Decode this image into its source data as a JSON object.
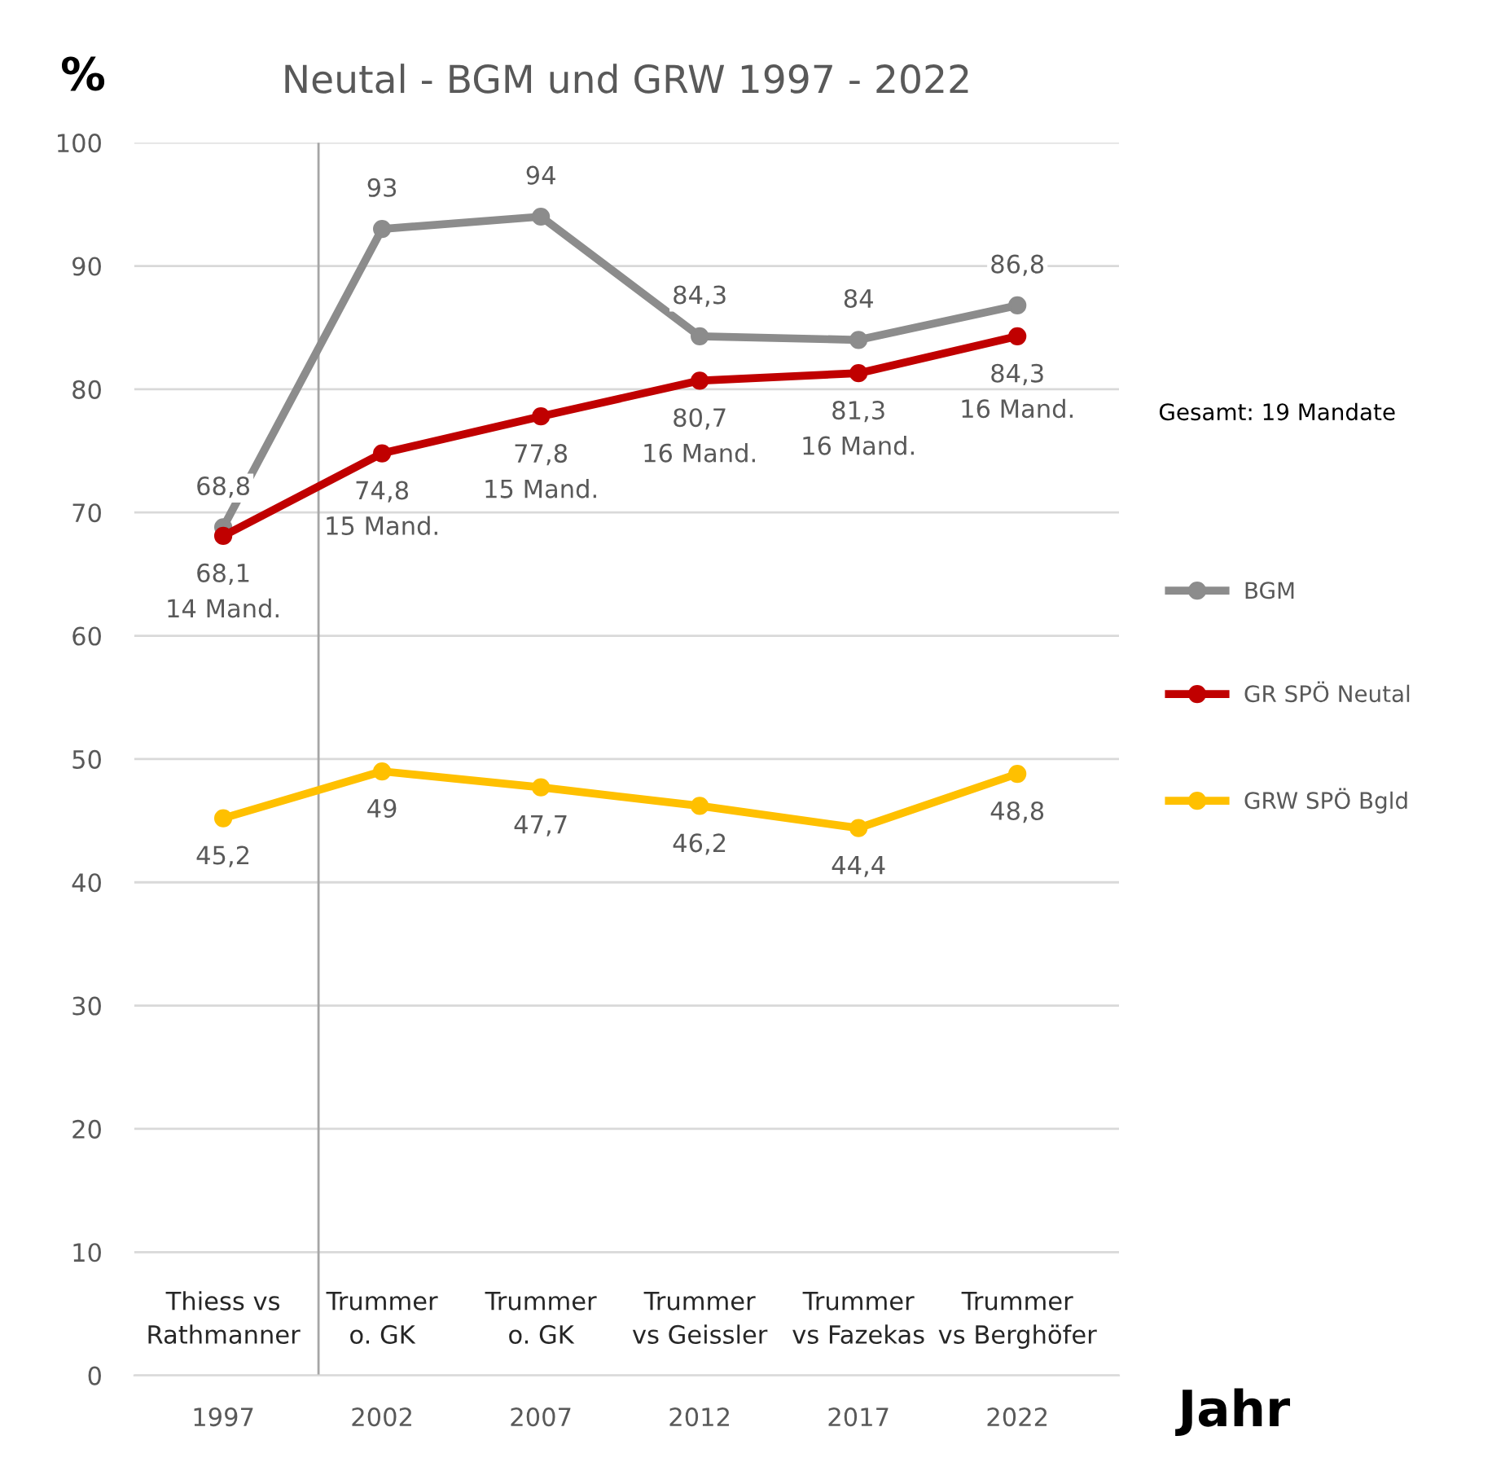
{
  "chart_data": {
    "type": "line",
    "title": "Neutal - BGM und GRW 1997 - 2022",
    "xlabel": "Jahr",
    "ylabel": "%",
    "x": [
      1997,
      2002,
      2007,
      2012,
      2017,
      2022
    ],
    "xlim": [
      1994.2,
      2025.2
    ],
    "xticks": [
      1997,
      2002,
      2007,
      2012,
      2017,
      2022
    ],
    "ylim": [
      0,
      100
    ],
    "yticks": [
      0,
      10,
      20,
      30,
      40,
      50,
      60,
      70,
      80,
      90,
      100
    ],
    "grid": "y",
    "legend": "right",
    "marker": "circle",
    "line_style": "solid",
    "series": [
      {
        "name": "BGM",
        "color": "#8c8c8c",
        "values": [
          68.8,
          93,
          94,
          84.3,
          84,
          86.8
        ],
        "value_labels": [
          "68,8",
          "93",
          "94",
          "84,3",
          "84",
          "86,8"
        ]
      },
      {
        "name": "GR SPÖ Neutal",
        "color": "#c00000",
        "values": [
          68.1,
          74.8,
          77.8,
          80.7,
          81.3,
          84.3
        ],
        "value_labels": [
          "68,1\n14 Mand.",
          "74,8\n15 Mand.",
          "77,8\n15 Mand.",
          "80,7\n16 Mand.",
          "81,3\n16 Mand.",
          "84,3\n16 Mand."
        ]
      },
      {
        "name": "GRW SPÖ Bgld",
        "color": "#ffc000",
        "values": [
          45.2,
          49,
          47.7,
          46.2,
          44.4,
          48.8
        ],
        "value_labels": [
          "45,2",
          "49",
          "47,7",
          "46,2",
          "44,4",
          "48,8"
        ]
      }
    ],
    "ref_lines": [
      {
        "axis": "x",
        "value": 2000,
        "label": null,
        "color": "#a6a6a6",
        "line_style": "solid"
      }
    ],
    "annotations": [
      "Gesamt: 19 Mandate",
      "Thiess vs\nRathmanner",
      "Trummer\no. GK",
      "Trummer\no. GK",
      "Trummer\nvs Geissler",
      "Trummer\nvs Fazekas",
      "Trummer\nvs Berghöfer"
    ]
  }
}
